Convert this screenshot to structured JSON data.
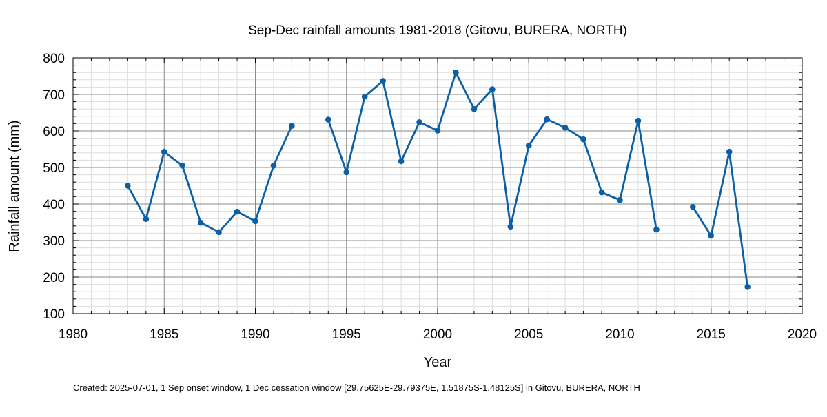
{
  "chart_data": {
    "type": "line",
    "title": "Sep-Dec rainfall amounts 1981-2018 (Gitovu, BURERA, NORTH)",
    "xlabel": "Year",
    "ylabel": "Rainfall amount (mm)",
    "xlim": [
      1980,
      2020
    ],
    "ylim": [
      100,
      800
    ],
    "x_ticks": [
      1980,
      1985,
      1990,
      1995,
      2000,
      2005,
      2010,
      2015,
      2020
    ],
    "y_ticks": [
      100,
      200,
      300,
      400,
      500,
      600,
      700,
      800
    ],
    "grid": true,
    "series": [
      {
        "color": "#0b5fa5",
        "points": [
          {
            "x": 1983,
            "y": 450
          },
          {
            "x": 1984,
            "y": 359
          },
          {
            "x": 1985,
            "y": 543
          },
          {
            "x": 1986,
            "y": 505
          },
          {
            "x": 1987,
            "y": 349
          },
          {
            "x": 1988,
            "y": 323
          },
          {
            "x": 1989,
            "y": 379
          },
          {
            "x": 1990,
            "y": 353
          },
          {
            "x": 1991,
            "y": 505
          },
          {
            "x": 1992,
            "y": 614
          },
          {
            "x": 1993,
            "y": null
          },
          {
            "x": 1994,
            "y": 631
          },
          {
            "x": 1995,
            "y": 487
          },
          {
            "x": 1996,
            "y": 694
          },
          {
            "x": 1997,
            "y": 737
          },
          {
            "x": 1998,
            "y": 517
          },
          {
            "x": 1999,
            "y": 624
          },
          {
            "x": 2000,
            "y": 601
          },
          {
            "x": 2001,
            "y": 760
          },
          {
            "x": 2002,
            "y": 660
          },
          {
            "x": 2003,
            "y": 714
          },
          {
            "x": 2004,
            "y": 338
          },
          {
            "x": 2005,
            "y": 560
          },
          {
            "x": 2006,
            "y": 632
          },
          {
            "x": 2007,
            "y": 609
          },
          {
            "x": 2008,
            "y": 577
          },
          {
            "x": 2009,
            "y": 432
          },
          {
            "x": 2010,
            "y": 411
          },
          {
            "x": 2011,
            "y": 628
          },
          {
            "x": 2012,
            "y": 330
          },
          {
            "x": 2013,
            "y": null
          },
          {
            "x": 2014,
            "y": 392
          },
          {
            "x": 2015,
            "y": 313
          },
          {
            "x": 2016,
            "y": 543
          },
          {
            "x": 2017,
            "y": 173
          }
        ]
      }
    ],
    "footer": "Created: 2025-07-01, 1 Sep onset window, 1 Dec cessation window [29.75625E-29.79375E, 1.51875S-1.48125S] in Gitovu, BURERA, NORTH"
  }
}
